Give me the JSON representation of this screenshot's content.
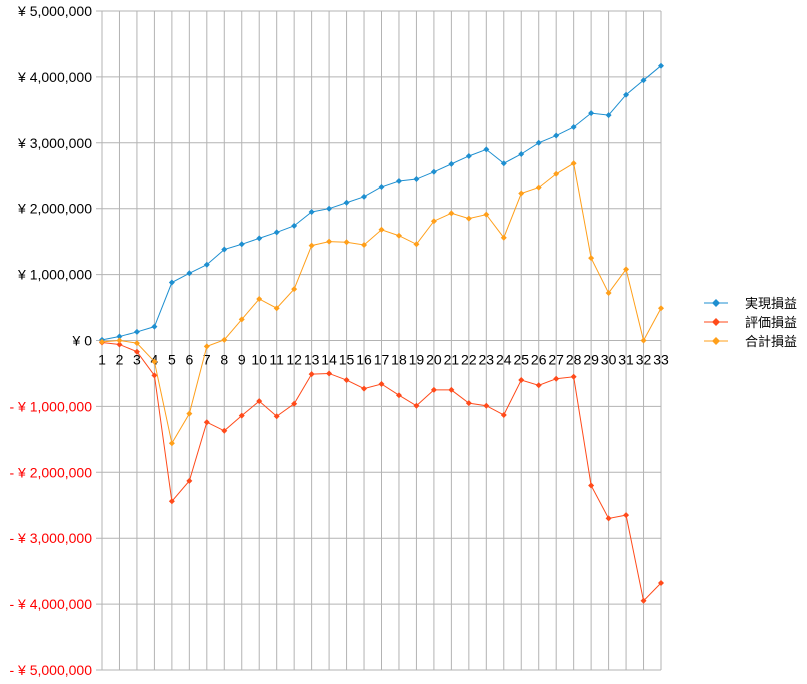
{
  "chart_data": {
    "type": "line",
    "title": "",
    "xlabel": "",
    "ylabel": "",
    "categories": [
      "1",
      "2",
      "3",
      "4",
      "5",
      "6",
      "7",
      "8",
      "9",
      "10",
      "11",
      "12",
      "13",
      "14",
      "15",
      "16",
      "17",
      "18",
      "19",
      "20",
      "21",
      "22",
      "23",
      "24",
      "25",
      "26",
      "27",
      "28",
      "29",
      "30",
      "31",
      "32",
      "33"
    ],
    "ylim": [
      -5000000,
      5000000
    ],
    "yticks": [
      5000000,
      4000000,
      3000000,
      2000000,
      1000000,
      0,
      -1000000,
      -2000000,
      -3000000,
      -4000000,
      -5000000
    ],
    "ytick_labels": [
      "¥ 5,000,000",
      "¥ 4,000,000",
      "¥ 3,000,000",
      "¥ 2,000,000",
      "¥ 1,000,000",
      "¥ 0",
      "- ¥ 1,000,000",
      "- ¥ 2,000,000",
      "- ¥ 3,000,000",
      "- ¥ 4,000,000",
      "- ¥ 5,000,000"
    ],
    "negative_label_color": "#ff0000",
    "grid": true,
    "legend_position": "right",
    "series": [
      {
        "name": "実現損益",
        "color": "#1e8fd0",
        "values": [
          10000,
          60000,
          130000,
          210000,
          880000,
          1020000,
          1150000,
          1380000,
          1460000,
          1550000,
          1640000,
          1740000,
          1950000,
          2000000,
          2090000,
          2180000,
          2330000,
          2420000,
          2450000,
          2560000,
          2680000,
          2800000,
          2900000,
          2690000,
          2830000,
          3000000,
          3110000,
          3240000,
          3450000,
          3420000,
          3730000,
          3950000,
          4170000
        ]
      },
      {
        "name": "評価損益",
        "color": "#ff4a1a",
        "values": [
          -30000,
          -60000,
          -170000,
          -530000,
          -2440000,
          -2130000,
          -1240000,
          -1370000,
          -1140000,
          -920000,
          -1150000,
          -960000,
          -510000,
          -500000,
          -600000,
          -730000,
          -660000,
          -830000,
          -990000,
          -750000,
          -750000,
          -950000,
          -990000,
          -1130000,
          -600000,
          -680000,
          -580000,
          -550000,
          -2200000,
          -2700000,
          -2650000,
          -3950000,
          -3680000
        ]
      },
      {
        "name": "合計損益",
        "color": "#ff9f1a",
        "values": [
          -20000,
          0,
          -40000,
          -320000,
          -1560000,
          -1110000,
          -90000,
          10000,
          320000,
          630000,
          490000,
          780000,
          1440000,
          1500000,
          1490000,
          1450000,
          1680000,
          1590000,
          1460000,
          1810000,
          1930000,
          1850000,
          1910000,
          1560000,
          2230000,
          2320000,
          2530000,
          2690000,
          1250000,
          720000,
          1080000,
          0,
          490000
        ]
      }
    ]
  }
}
